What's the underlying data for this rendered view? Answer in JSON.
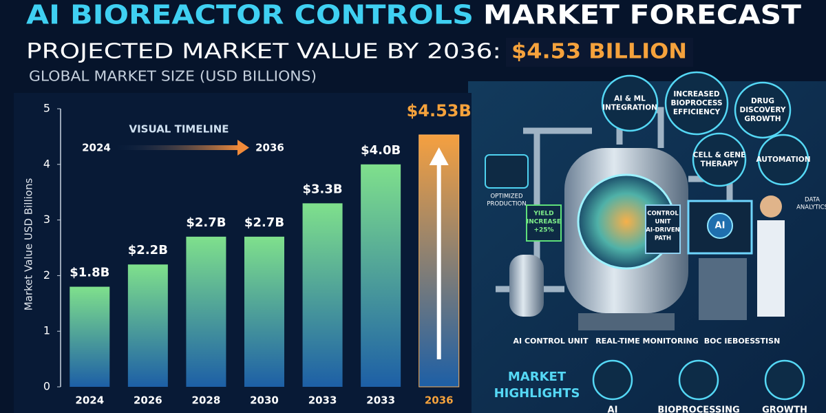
{
  "chart_data": {
    "type": "bar",
    "title": {
      "accent": "AI BIOREACTOR CONTROLS",
      "rest": "MARKET FORECAST"
    },
    "subtitle": {
      "text": "PROJECTED MARKET VALUE BY 2036:",
      "highlight": "$4.53 BILLION"
    },
    "caption": "GLOBAL MARKET SIZE (USD BILLIONS)",
    "y_label": "Market Value USD Billions",
    "timeline": {
      "label": "VISUAL TIMELINE",
      "start": "2024",
      "end": "2036"
    },
    "categories": [
      "2024",
      "2026",
      "2028",
      "2030",
      "2033",
      "2033",
      "2036"
    ],
    "values": [
      1.8,
      2.2,
      2.7,
      2.7,
      3.3,
      4.0,
      4.53
    ],
    "value_labels": [
      "$1.8B",
      "$2.2B",
      "$2.7B",
      "$2.7B",
      "$3.3B",
      "$4.0B",
      "$4.53B"
    ],
    "colors": [
      "#7fe08c",
      "#7fe08c",
      "#7fe08c",
      "#7fe08c",
      "#7fe08c",
      "#7fe08c",
      "#f5a040"
    ],
    "ylim": [
      0,
      5
    ],
    "yticks": [
      0,
      1,
      2,
      3,
      4,
      5
    ],
    "grid": false
  },
  "illustration": {
    "bubbles": [
      [
        "AI & ML",
        "INTEGRATION"
      ],
      [
        "INCREASED",
        "BIOPROCESS",
        "EFFICIENCY"
      ],
      [
        "DRUG",
        "DISCOVERY",
        "GROWTH"
      ],
      [
        "CELL & GENE",
        "THERAPY"
      ],
      [
        "AUTOMATION"
      ]
    ],
    "tags": {
      "optimized": [
        "OPTIMIZED",
        "PRODUCTION"
      ],
      "yield": [
        "YIELD",
        "INCREASE",
        "+25%"
      ],
      "control": [
        "CONTROL",
        "UNIT",
        "AI-DRIVEN",
        "PATH"
      ],
      "data": [
        "DATA",
        "ANALYTICS"
      ]
    },
    "screen": "AI",
    "captions": [
      "AI CONTROL UNIT",
      "REAL-TIME MONITORING",
      "BOC IEBOESSTISN"
    ],
    "highlights": {
      "title": [
        "MARKET",
        "HIGHLIGHTS"
      ],
      "items": [
        "AI",
        "BIOPROCESSING",
        "GROWTH"
      ]
    }
  }
}
